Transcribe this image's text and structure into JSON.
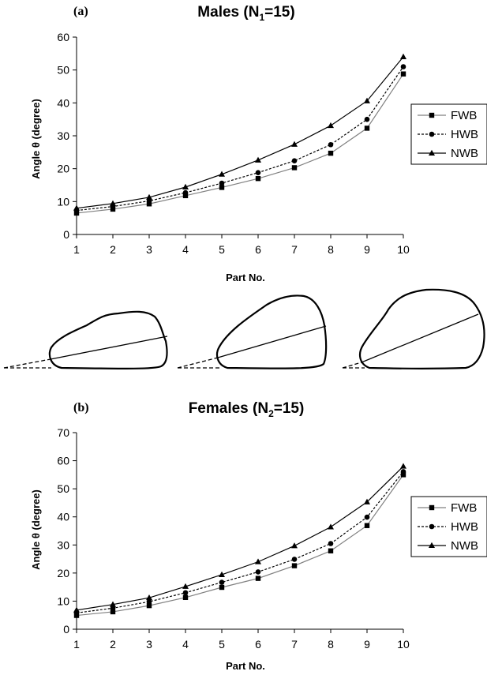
{
  "chart_data": [
    {
      "type": "line",
      "panel_label": "(a)",
      "title_main": "Males (N",
      "title_sub": "1",
      "title_end": "=15)",
      "xlabel": "Part No.",
      "ylabel": "Angle θ (degree)",
      "x": [
        1,
        2,
        3,
        4,
        5,
        6,
        7,
        8,
        9,
        10
      ],
      "ylim": [
        0,
        60
      ],
      "yticks": [
        0,
        10,
        20,
        30,
        40,
        50,
        60
      ],
      "legend_position": "right",
      "series": [
        {
          "name": "FWB",
          "marker": "square",
          "dash": "solid",
          "color": "#808080",
          "values": [
            6.5,
            7.7,
            9.3,
            11.8,
            14.3,
            17.0,
            20.3,
            24.7,
            32.3,
            48.8
          ]
        },
        {
          "name": "HWB",
          "marker": "circle",
          "dash": "dashed",
          "color": "#000000",
          "values": [
            7.3,
            8.5,
            10.2,
            12.7,
            15.6,
            18.8,
            22.4,
            27.3,
            35.0,
            51.0
          ]
        },
        {
          "name": "NWB",
          "marker": "triangle",
          "dash": "solid",
          "color": "#000000",
          "values": [
            8.0,
            9.4,
            11.3,
            14.4,
            18.3,
            22.6,
            27.4,
            33.1,
            40.6,
            54.0
          ]
        }
      ]
    },
    {
      "type": "line",
      "panel_label": "(b)",
      "title_main": "Females (N",
      "title_sub": "2",
      "title_end": "=15)",
      "xlabel": "Part No.",
      "ylabel": "Angle θ (degree)",
      "x": [
        1,
        2,
        3,
        4,
        5,
        6,
        7,
        8,
        9,
        10
      ],
      "ylim": [
        0,
        70
      ],
      "yticks": [
        0,
        10,
        20,
        30,
        40,
        50,
        60,
        70
      ],
      "legend_position": "right",
      "series": [
        {
          "name": "FWB",
          "marker": "square",
          "dash": "solid",
          "color": "#808080",
          "values": [
            4.9,
            6.2,
            8.4,
            11.3,
            14.9,
            18.1,
            22.6,
            27.9,
            36.9,
            55.0
          ]
        },
        {
          "name": "HWB",
          "marker": "circle",
          "dash": "dashed",
          "color": "#000000",
          "values": [
            5.8,
            7.5,
            9.8,
            13.0,
            16.7,
            20.4,
            24.9,
            30.5,
            39.9,
            56.1
          ]
        },
        {
          "name": "NWB",
          "marker": "triangle",
          "dash": "solid",
          "color": "#000000",
          "values": [
            6.8,
            8.8,
            11.2,
            15.2,
            19.4,
            24.0,
            29.7,
            36.4,
            45.3,
            58.0
          ]
        }
      ]
    }
  ]
}
